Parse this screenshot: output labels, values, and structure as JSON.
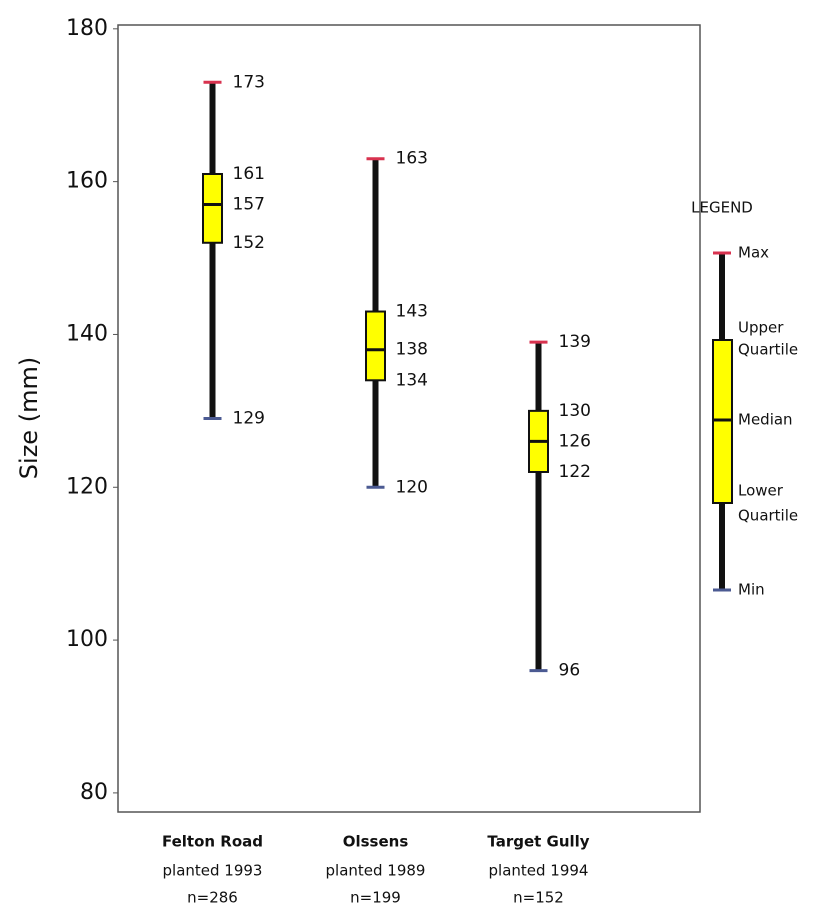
{
  "chart_data": {
    "type": "boxplot",
    "y_label": "Size (mm)",
    "categories": [
      "Felton Road",
      "Olssens",
      "Target Gully"
    ],
    "category_sublabels": [
      [
        "planted 1993",
        "n=286"
      ],
      [
        "planted 1989",
        "n=199"
      ],
      [
        "planted 1994",
        "n=152"
      ]
    ],
    "boxes": [
      {
        "min": 129,
        "q1": 152,
        "median": 157,
        "q3": 161,
        "max": 173
      },
      {
        "min": 120,
        "q1": 134,
        "median": 138,
        "q3": 143,
        "max": 163
      },
      {
        "min": 96,
        "q1": 122,
        "median": 126,
        "q3": 130,
        "max": 139
      }
    ],
    "ylim": [
      77.5,
      180.5
    ],
    "yticks": [
      80,
      100,
      120,
      140,
      160,
      180
    ],
    "grid": false,
    "box_color": "#ffff00",
    "whisker_color": "#111111",
    "max_color": "#d8324f",
    "min_color": "#4b5a92",
    "legend": {
      "title": "LEGEND",
      "labels": {
        "max": "Max",
        "q3": [
          "Upper",
          "Quartile"
        ],
        "median": "Median",
        "q1": [
          "Lower",
          "Quartile"
        ],
        "min": "Min"
      }
    }
  }
}
